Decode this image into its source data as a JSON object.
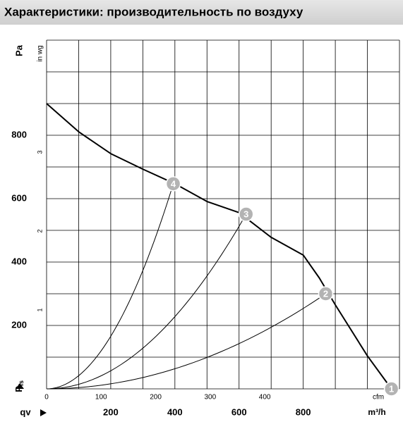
{
  "chart_data": {
    "type": "line",
    "title": "Характеристики: производительность по воздуху",
    "y_label": "Pa",
    "y2_label": "in wg",
    "y_symbol": "P",
    "y_symbol_sub": "fs",
    "x_symbol": "qv",
    "x_label": "m³/h",
    "x2_label": "cfm",
    "xlim": [
      0,
      1100
    ],
    "xticks": [
      200,
      400,
      600,
      800
    ],
    "xgrid": [
      0,
      100,
      200,
      300,
      400,
      500,
      600,
      700,
      800,
      900,
      1000,
      1100
    ],
    "x2lim": [
      0,
      647
    ],
    "x2ticks": [
      0,
      100,
      200,
      300,
      400
    ],
    "ylim": [
      0,
      1100
    ],
    "yticks": [
      200,
      400,
      600,
      800
    ],
    "ygrid": [
      0,
      100,
      200,
      300,
      400,
      500,
      600,
      700,
      800,
      900,
      1000,
      1100
    ],
    "y2lim": [
      0,
      4.42
    ],
    "y2ticks": [
      1,
      2,
      3
    ],
    "x": [
      0,
      100,
      200,
      300,
      400,
      500,
      600,
      700,
      800,
      850,
      900,
      1000,
      1075
    ],
    "series": [
      {
        "name": "Pfs",
        "color": "#000000",
        "values": [
          900,
          811,
          742,
          693,
          647,
          591,
          556,
          478,
          422,
          350,
          265,
          104,
          0
        ]
      }
    ],
    "operating_points": [
      {
        "label": "1",
        "q": 1075,
        "p": 0
      },
      {
        "label": "2",
        "q": 870,
        "p": 300
      },
      {
        "label": "3",
        "q": 622,
        "p": 551
      },
      {
        "label": "4",
        "q": 395,
        "p": 647
      }
    ]
  }
}
